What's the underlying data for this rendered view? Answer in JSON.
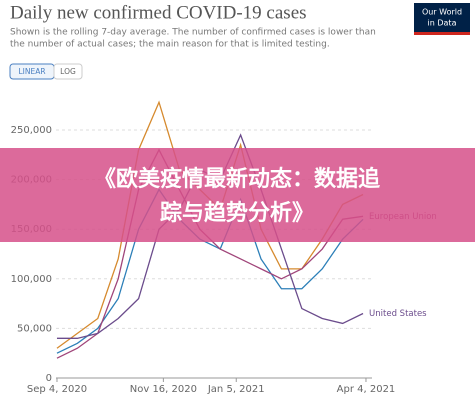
{
  "chart_data": {
    "type": "line",
    "title": "Daily new confirmed COVID-19 cases",
    "subtitle": [
      "Shown is the rolling 7-day average. The number of confirmed cases is lower than",
      "the number of actual cases; the main reason for that is limited testing."
    ],
    "x": [
      "2020-09-04",
      "2020-09-18",
      "2020-10-02",
      "2020-10-16",
      "2020-10-30",
      "2020-11-13",
      "2020-11-27",
      "2020-12-11",
      "2020-12-25",
      "2021-01-08",
      "2021-01-22",
      "2021-02-05",
      "2021-02-19",
      "2021-03-05",
      "2021-03-19",
      "2021-04-02"
    ],
    "xlim": [
      "2020-09-01",
      "2021-04-08"
    ],
    "xticks": [
      {
        "value": "2020-09-04",
        "label": "Sep 4, 2020"
      },
      {
        "value": "2020-11-16",
        "label": "Nov 16, 2020"
      },
      {
        "value": "2021-01-05",
        "label": "Jan 5, 2021"
      },
      {
        "value": "2021-04-04",
        "label": "Apr 4, 2021"
      }
    ],
    "ylim": [
      0,
      250000
    ],
    "yticks": [
      0,
      {
        "value": 50000,
        "label": "50,000"
      },
      {
        "value": 100000,
        "label": "100,000"
      },
      {
        "value": 150000,
        "label": "150,000"
      },
      {
        "value": 200000,
        "label": "200,000"
      },
      {
        "value": 250000,
        "label": "250,000"
      }
    ],
    "grid": true,
    "series": [
      {
        "color": "#d68a2e",
        "values": [
          30000,
          45000,
          60000,
          120000,
          230000,
          278000,
          210000,
          190000,
          170000,
          235000,
          150000,
          110000,
          110000,
          140000,
          175000,
          185000
        ]
      },
      {
        "color": "#2c7fb8",
        "values": [
          25000,
          35000,
          50000,
          80000,
          150000,
          190000,
          160000,
          140000,
          130000,
          180000,
          120000,
          90000,
          90000,
          110000,
          140000,
          160000
        ]
      },
      {
        "name": "European Union",
        "color": "#a0457a",
        "values": [
          20000,
          30000,
          45000,
          100000,
          190000,
          230000,
          190000,
          150000,
          130000,
          120000,
          110000,
          100000,
          110000,
          130000,
          160000,
          163000
        ]
      },
      {
        "name": "United States",
        "color": "#6b4c8c",
        "values": [
          40000,
          40000,
          45000,
          60000,
          80000,
          150000,
          170000,
          210000,
          200000,
          245000,
          190000,
          130000,
          70000,
          60000,
          55000,
          65000
        ]
      }
    ]
  },
  "controls": {
    "buttons": [
      "LINEAR",
      "LOG"
    ]
  },
  "logo": {
    "lines": [
      "Our World",
      "in Data"
    ]
  },
  "banner": {
    "lines": [
      "《欧美疫情最新动态：数据追",
      "踪与趋势分析》"
    ]
  }
}
